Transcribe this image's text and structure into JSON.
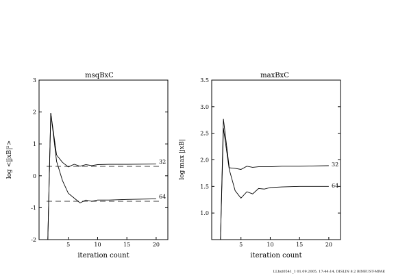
{
  "chart_data": [
    {
      "type": "line",
      "title": "msqBxC",
      "xlabel": "iteration count",
      "ylabel": "log <|jxB|²>",
      "xlim": [
        0,
        22
      ],
      "ylim": [
        -2,
        3
      ],
      "xticks": [
        5,
        10,
        15,
        20
      ],
      "yticks": [
        -2,
        -1,
        0,
        1,
        2,
        3
      ],
      "grid": false,
      "legend": "none",
      "reference_lines": [
        {
          "label": "32",
          "y": 0.3
        },
        {
          "label": "64",
          "y": -0.8
        }
      ],
      "series": [
        {
          "name": "32",
          "x": [
            1.5,
            2,
            3,
            4,
            5,
            6,
            7,
            8,
            9,
            10,
            12,
            15,
            20
          ],
          "y": [
            -2.0,
            1.97,
            0.65,
            0.42,
            0.28,
            0.36,
            0.3,
            0.35,
            0.32,
            0.35,
            0.36,
            0.36,
            0.37
          ]
        },
        {
          "name": "64",
          "x": [
            1.5,
            2,
            3,
            4,
            5,
            6,
            7,
            8,
            9,
            10,
            12,
            15,
            20
          ],
          "y": [
            -2.0,
            1.97,
            0.45,
            -0.15,
            -0.55,
            -0.7,
            -0.85,
            -0.76,
            -0.8,
            -0.76,
            -0.76,
            -0.74,
            -0.72
          ]
        }
      ]
    },
    {
      "type": "line",
      "title": "maxBxC",
      "xlabel": "iteration count",
      "ylabel": "log max |jxB|",
      "xlim": [
        0,
        22
      ],
      "ylim": [
        0.5,
        3.5
      ],
      "xticks": [
        5,
        10,
        15,
        20
      ],
      "yticks": [
        1.0,
        1.5,
        2.0,
        2.5,
        3.0,
        3.5
      ],
      "grid": false,
      "legend": "none",
      "series": [
        {
          "name": "32",
          "x": [
            1.5,
            2,
            3,
            4,
            5,
            6,
            7,
            8,
            9,
            10,
            12,
            15,
            20
          ],
          "y": [
            0.5,
            2.77,
            1.85,
            1.84,
            1.82,
            1.88,
            1.86,
            1.87,
            1.87,
            1.87,
            1.88,
            1.88,
            1.89
          ]
        },
        {
          "name": "64",
          "x": [
            1.5,
            2,
            3,
            4,
            5,
            6,
            7,
            8,
            9,
            10,
            12,
            15,
            20
          ],
          "y": [
            0.5,
            2.6,
            1.82,
            1.42,
            1.28,
            1.4,
            1.36,
            1.46,
            1.45,
            1.48,
            1.49,
            1.5,
            1.5
          ]
        }
      ]
    }
  ],
  "footer": "LLhxt0541_1     01.09.2005, 17:44:14, DISLIN 8.2 BINEUST-MPAE"
}
